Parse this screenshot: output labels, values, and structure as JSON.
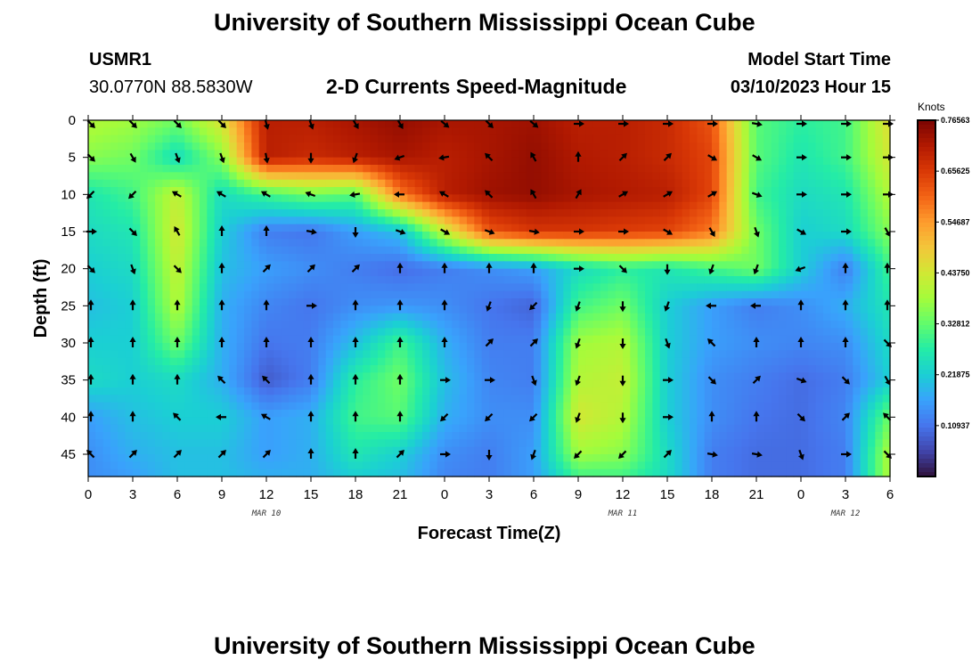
{
  "header": {
    "title": "University of Southern Mississippi Ocean Cube",
    "station_id": "USMR1",
    "coordinates": "30.0770N  88.5830W",
    "chart_subtitle": "2-D Currents Speed-Magnitude",
    "model_start_label": "Model Start Time",
    "model_start_value": "03/10/2023 Hour 15"
  },
  "footer": {
    "repeated_title": "University of Southern Mississippi Ocean Cube"
  },
  "chart_data": {
    "type": "heatmap",
    "title": "2-D Currents Speed-Magnitude",
    "xlabel": "Forecast Time(Z)",
    "ylabel": "Depth (ft)",
    "x_ticks": [
      "0",
      "3",
      "6",
      "9",
      "12",
      "15",
      "18",
      "21",
      "0",
      "3",
      "6",
      "9",
      "12",
      "15",
      "18",
      "21",
      "0",
      "3",
      "6"
    ],
    "x_range_hours": [
      0,
      54
    ],
    "date_labels": [
      {
        "text": "MAR 10",
        "hour": 12
      },
      {
        "text": "MAR 11",
        "hour": 36
      },
      {
        "text": "MAR 12",
        "hour": 51
      }
    ],
    "y_ticks": [
      0,
      5,
      10,
      15,
      20,
      25,
      30,
      35,
      40,
      45
    ],
    "y_range": [
      0,
      48
    ],
    "y_inverted": true,
    "colorbar": {
      "unit": "Knots",
      "min": 0.0,
      "max": 0.76563,
      "labels": [
        "0.76563",
        "0.65625",
        "0.54687",
        "0.43750",
        "0.32812",
        "0.21875",
        "0.10937"
      ],
      "label_values": [
        0.76563,
        0.65625,
        0.54687,
        0.4375,
        0.32812,
        0.21875,
        0.10937
      ],
      "colormap": [
        "#30123b",
        "#4145ab",
        "#4675ed",
        "#39a2fc",
        "#1bcfd4",
        "#24eca6",
        "#61fc6c",
        "#a4fc3b",
        "#d1e834",
        "#f3c63a",
        "#fe9b2d",
        "#f36315",
        "#d93806",
        "#b11901",
        "#7a0402"
      ]
    },
    "speed_grid": {
      "hours": [
        0,
        3,
        6,
        9,
        12,
        15,
        18,
        21,
        24,
        27,
        30,
        33,
        36,
        39,
        42,
        45,
        48,
        51,
        54
      ],
      "depths": [
        0,
        5,
        10,
        15,
        20,
        25,
        30,
        35,
        40,
        45,
        48
      ],
      "values": [
        [
          0.4,
          0.38,
          0.34,
          0.45,
          0.7,
          0.7,
          0.72,
          0.74,
          0.72,
          0.72,
          0.73,
          0.7,
          0.7,
          0.68,
          0.62,
          0.32,
          0.28,
          0.3,
          0.46
        ],
        [
          0.36,
          0.34,
          0.24,
          0.36,
          0.7,
          0.68,
          0.7,
          0.72,
          0.7,
          0.72,
          0.74,
          0.71,
          0.7,
          0.68,
          0.64,
          0.32,
          0.26,
          0.3,
          0.44
        ],
        [
          0.26,
          0.3,
          0.42,
          0.24,
          0.3,
          0.34,
          0.32,
          0.58,
          0.7,
          0.73,
          0.74,
          0.72,
          0.71,
          0.7,
          0.64,
          0.3,
          0.24,
          0.26,
          0.4
        ],
        [
          0.24,
          0.26,
          0.44,
          0.22,
          0.12,
          0.11,
          0.16,
          0.2,
          0.42,
          0.62,
          0.66,
          0.66,
          0.65,
          0.64,
          0.58,
          0.34,
          0.22,
          0.24,
          0.36
        ],
        [
          0.22,
          0.24,
          0.42,
          0.2,
          0.16,
          0.14,
          0.12,
          0.1,
          0.12,
          0.14,
          0.16,
          0.24,
          0.28,
          0.26,
          0.3,
          0.34,
          0.22,
          0.12,
          0.3
        ],
        [
          0.2,
          0.22,
          0.4,
          0.18,
          0.13,
          0.11,
          0.14,
          0.15,
          0.14,
          0.11,
          0.09,
          0.3,
          0.34,
          0.22,
          0.16,
          0.12,
          0.14,
          0.18,
          0.26
        ],
        [
          0.22,
          0.22,
          0.34,
          0.18,
          0.11,
          0.12,
          0.2,
          0.3,
          0.18,
          0.12,
          0.12,
          0.38,
          0.4,
          0.22,
          0.16,
          0.14,
          0.13,
          0.14,
          0.24
        ],
        [
          0.24,
          0.22,
          0.24,
          0.18,
          0.08,
          0.12,
          0.28,
          0.34,
          0.2,
          0.13,
          0.12,
          0.4,
          0.42,
          0.22,
          0.14,
          0.12,
          0.1,
          0.12,
          0.22
        ],
        [
          0.16,
          0.2,
          0.22,
          0.22,
          0.16,
          0.18,
          0.3,
          0.32,
          0.18,
          0.14,
          0.14,
          0.44,
          0.4,
          0.22,
          0.14,
          0.11,
          0.1,
          0.13,
          0.34
        ],
        [
          0.14,
          0.18,
          0.2,
          0.2,
          0.16,
          0.18,
          0.26,
          0.22,
          0.14,
          0.12,
          0.16,
          0.38,
          0.36,
          0.24,
          0.12,
          0.1,
          0.1,
          0.12,
          0.4
        ],
        [
          0.14,
          0.16,
          0.2,
          0.2,
          0.18,
          0.18,
          0.22,
          0.2,
          0.13,
          0.12,
          0.16,
          0.3,
          0.3,
          0.24,
          0.12,
          0.1,
          0.1,
          0.12,
          0.4
        ]
      ]
    },
    "vectors": {
      "hours": [
        0,
        3,
        6,
        9,
        12,
        15,
        18,
        21,
        24,
        27,
        30,
        33,
        36,
        39,
        42,
        45,
        48,
        51,
        54
      ],
      "depths": [
        0,
        5,
        10,
        15,
        20,
        25,
        30,
        35,
        40,
        45
      ],
      "directions_deg": [
        [
          135,
          135,
          135,
          135,
          165,
          160,
          150,
          150,
          130,
          135,
          130,
          90,
          90,
          90,
          90,
          100,
          90,
          90,
          90
        ],
        [
          135,
          150,
          160,
          160,
          170,
          180,
          200,
          250,
          260,
          315,
          330,
          0,
          45,
          45,
          120,
          120,
          90,
          90,
          90
        ],
        [
          225,
          225,
          300,
          300,
          300,
          290,
          260,
          270,
          300,
          315,
          330,
          30,
          60,
          60,
          60,
          110,
          90,
          90,
          90
        ],
        [
          90,
          135,
          330,
          0,
          0,
          100,
          180,
          110,
          120,
          110,
          100,
          90,
          90,
          120,
          150,
          160,
          120,
          90,
          150
        ],
        [
          135,
          160,
          135,
          0,
          45,
          45,
          45,
          0,
          0,
          0,
          0,
          90,
          135,
          180,
          200,
          200,
          250,
          0,
          0
        ],
        [
          0,
          0,
          0,
          0,
          0,
          90,
          0,
          0,
          0,
          200,
          225,
          200,
          180,
          200,
          270,
          270,
          0,
          0,
          0
        ],
        [
          0,
          0,
          0,
          0,
          0,
          0,
          0,
          0,
          0,
          45,
          45,
          200,
          180,
          160,
          315,
          0,
          0,
          0,
          135
        ],
        [
          0,
          0,
          0,
          315,
          315,
          0,
          0,
          0,
          90,
          90,
          160,
          200,
          180,
          90,
          135,
          45,
          110,
          135,
          150
        ],
        [
          0,
          0,
          315,
          270,
          300,
          0,
          0,
          0,
          225,
          225,
          225,
          200,
          180,
          90,
          0,
          0,
          135,
          45,
          315
        ],
        [
          315,
          45,
          45,
          45,
          45,
          0,
          0,
          45,
          90,
          180,
          200,
          225,
          225,
          45,
          100,
          100,
          160,
          90,
          135
        ]
      ]
    }
  }
}
